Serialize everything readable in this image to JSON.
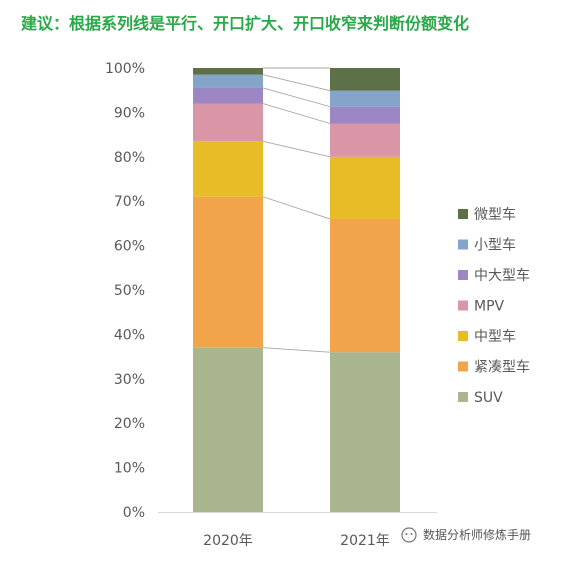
{
  "title": "建议：根据系列线是平行、开口扩大、开口收窄来判断份额变化",
  "watermark": "数据分析师修炼手册",
  "chart_data": {
    "type": "bar",
    "stacked": true,
    "percent_stacked": true,
    "series_lines": true,
    "categories": [
      "2020年",
      "2021年"
    ],
    "y_ticks": [
      "0%",
      "10%",
      "20%",
      "30%",
      "40%",
      "50%",
      "60%",
      "70%",
      "80%",
      "90%",
      "100%"
    ],
    "ylim": [
      0,
      100
    ],
    "legend_position": "right",
    "series": [
      {
        "name": "SUV",
        "color": "#a9b58f",
        "values": [
          37,
          36
        ]
      },
      {
        "name": "紧凑型车",
        "color": "#f2a44a",
        "values": [
          34,
          30
        ]
      },
      {
        "name": "中型车",
        "color": "#e7bc26",
        "values": [
          12.5,
          14
        ]
      },
      {
        "name": "MPV",
        "color": "#d996a6",
        "values": [
          8.5,
          7.5
        ]
      },
      {
        "name": "中大型车",
        "color": "#9d86c4",
        "values": [
          3.5,
          3.8
        ]
      },
      {
        "name": "小型车",
        "color": "#84a5c9",
        "values": [
          3,
          3.6
        ]
      },
      {
        "name": "微型车",
        "color": "#5d7048",
        "values": [
          1.5,
          5.1
        ]
      }
    ]
  }
}
